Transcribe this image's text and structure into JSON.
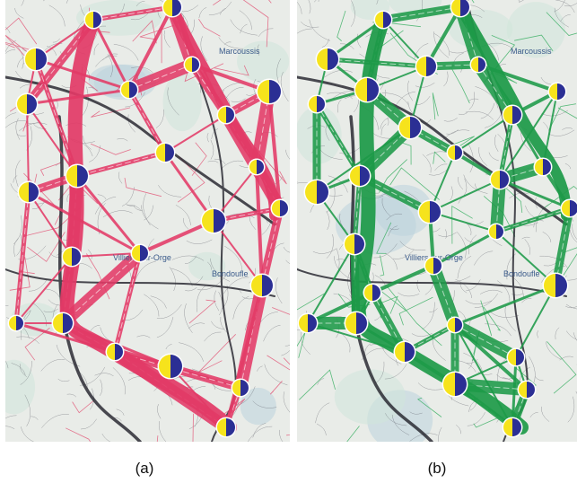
{
  "figure": {
    "panels": [
      {
        "id": "a",
        "caption": "(a)",
        "flow_color": "#e23a66",
        "thin_color": "#e14a6e",
        "labels": [
          "Marcoussis",
          "Villiers-sur-Orge",
          "Bondoufle"
        ]
      },
      {
        "id": "b",
        "caption": "(b)",
        "flow_color": "#1d9a48",
        "thin_color": "#2aaa57",
        "labels": [
          "Marcoussis",
          "Villiers-sur-Orge",
          "Bondoufle"
        ]
      }
    ],
    "marker_colors": {
      "yellow": "#f6e31c",
      "blue": "#2b2f94"
    },
    "map_colors": {
      "background": "#e9ece8",
      "roads": "#3b3b48",
      "water": "#bcd4dd",
      "green": "#cfe6da"
    }
  }
}
